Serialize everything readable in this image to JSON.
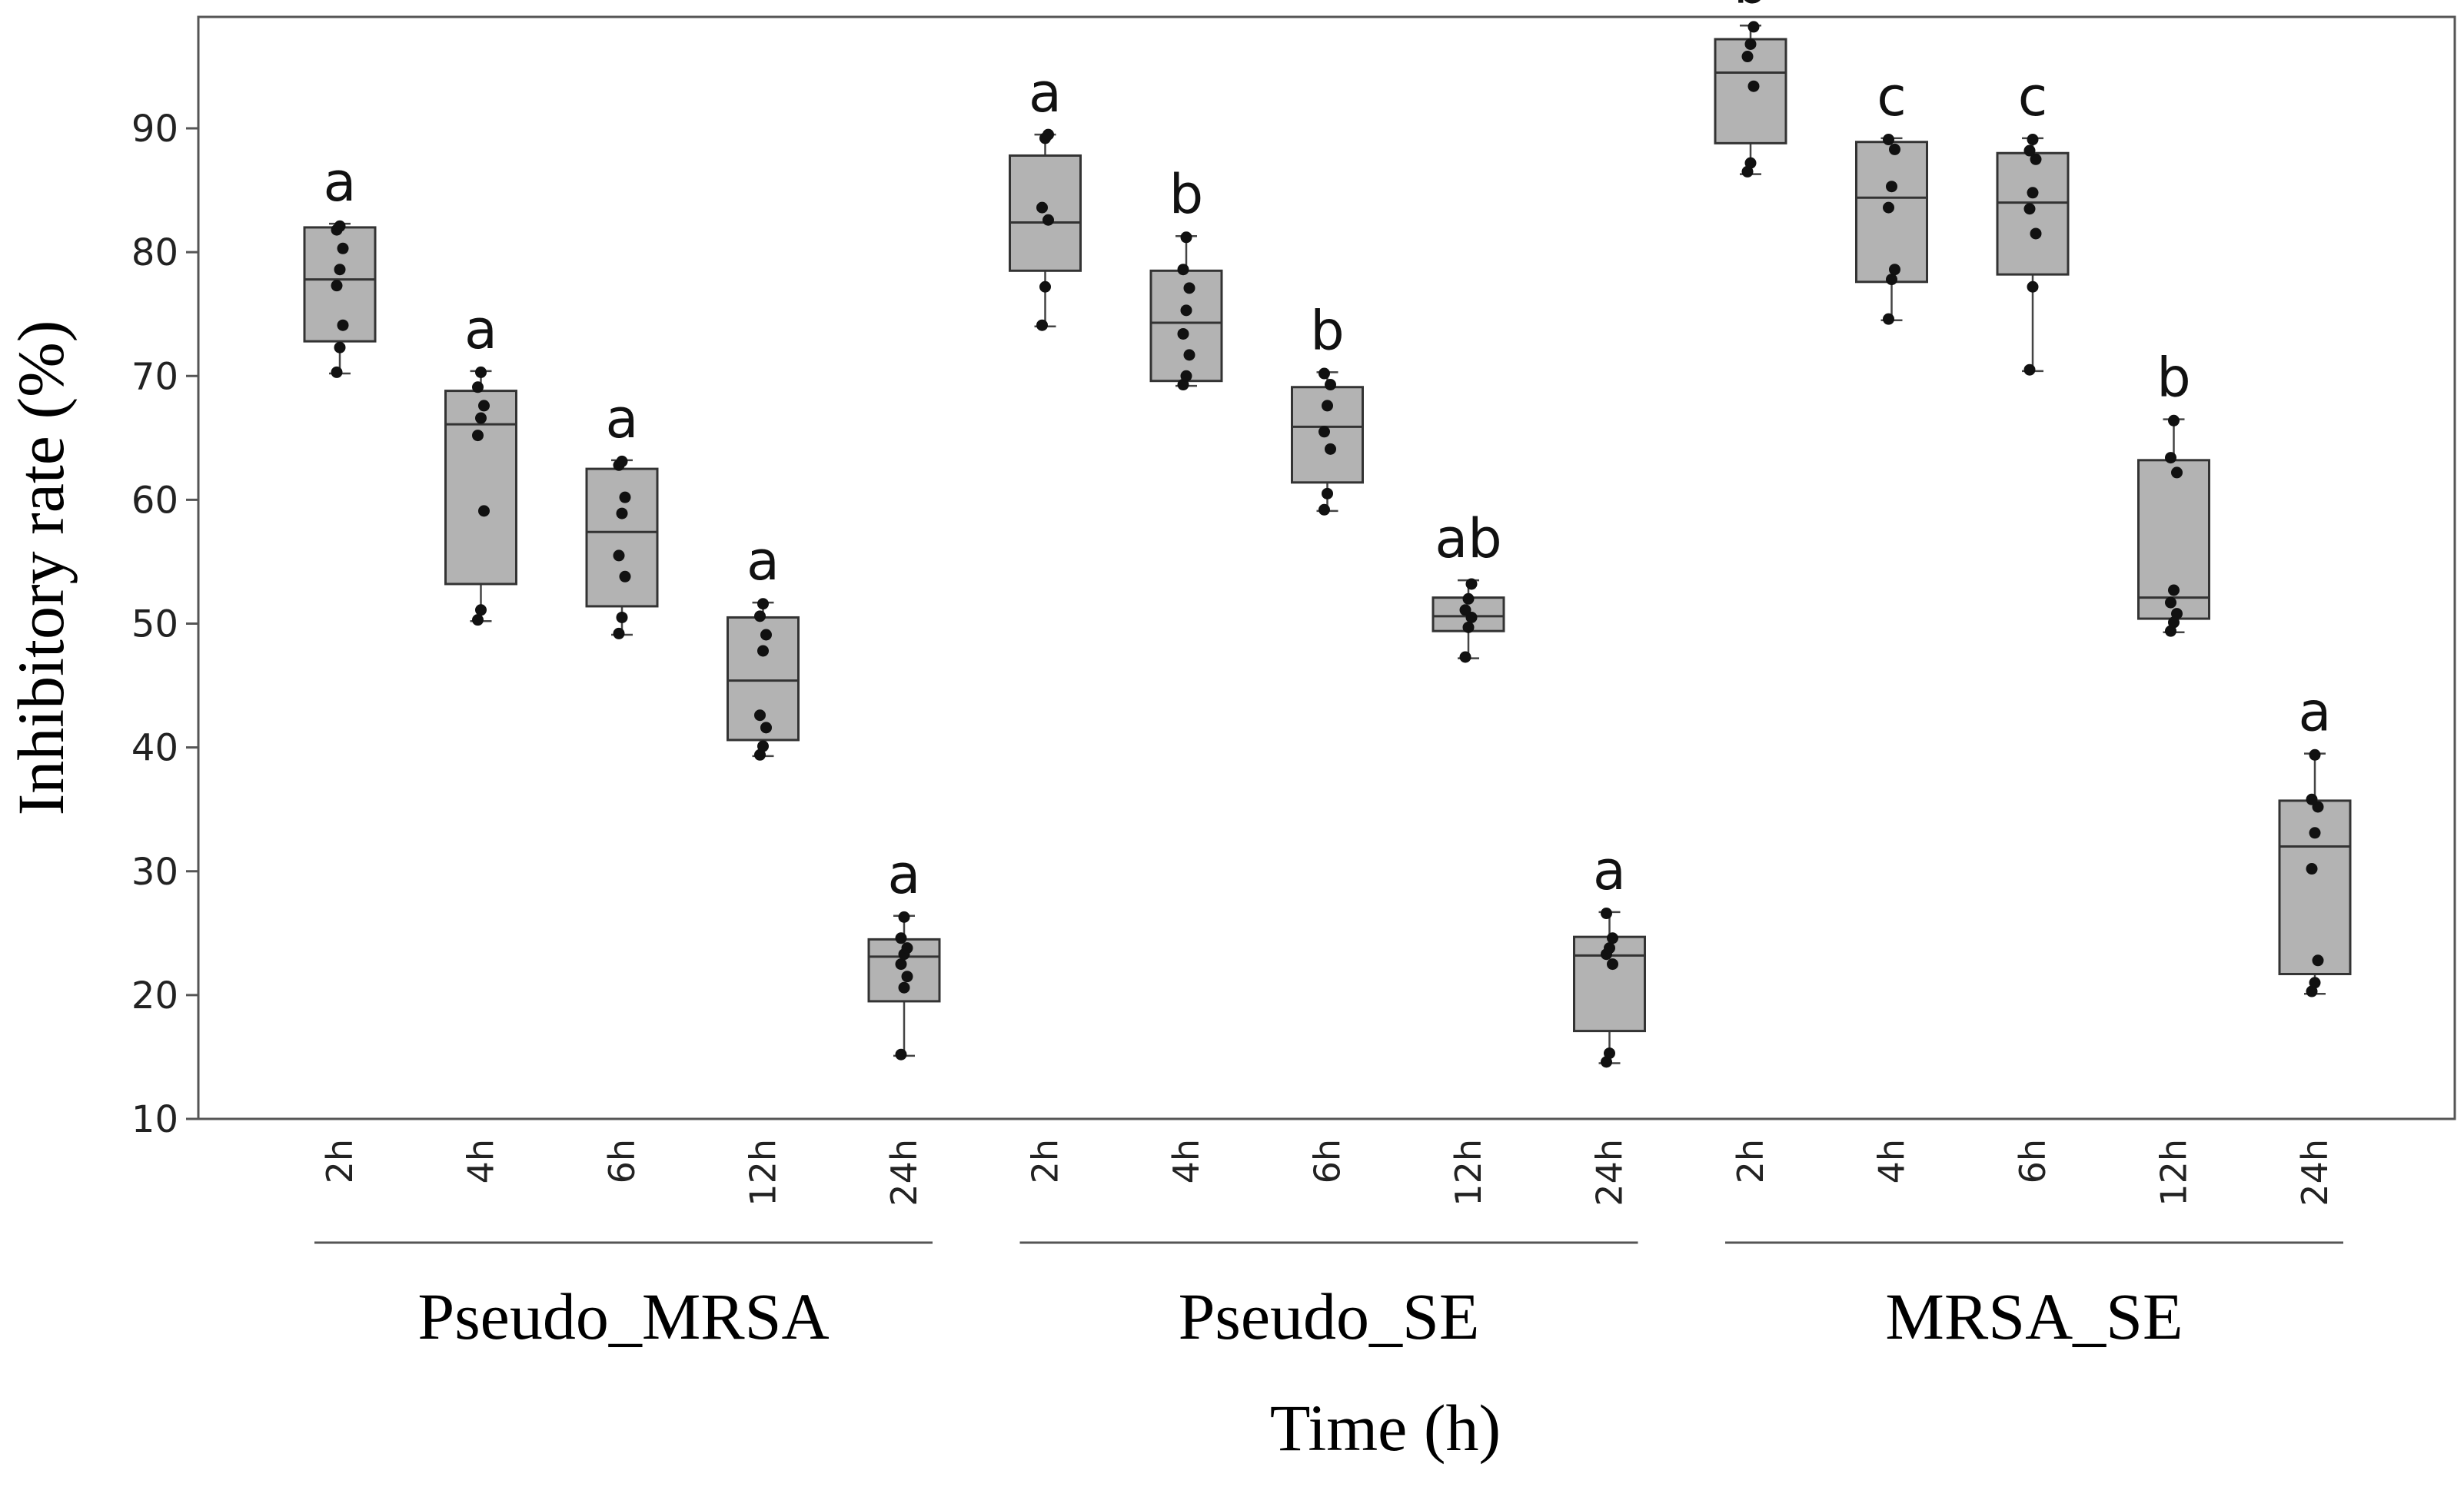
{
  "chart_data": {
    "type": "box",
    "title": "",
    "ylabel": "Inhibitory rate (%)",
    "xlabel": "Time (h)",
    "ylim": [
      10,
      99
    ],
    "yticks": [
      10,
      20,
      30,
      40,
      50,
      60,
      70,
      80,
      90
    ],
    "grid": false,
    "box_fill": "#b3b3b3",
    "groups": [
      {
        "name": "Pseudo_MRSA",
        "boxes": [
          {
            "time": "2h",
            "letter": "a",
            "q1": 72.8,
            "median": 77.8,
            "q3": 82.0,
            "whisker_low": 70.2,
            "whisker_high": 82.3,
            "points": [
              70.3,
              72.3,
              74.1,
              77.3,
              78.6,
              80.3,
              81.8,
              82.1
            ]
          },
          {
            "time": "4h",
            "letter": "a",
            "q1": 53.2,
            "median": 66.1,
            "q3": 68.8,
            "whisker_low": 50.2,
            "whisker_high": 70.4,
            "points": [
              50.3,
              51.1,
              59.1,
              65.2,
              66.6,
              67.6,
              69.1,
              70.3
            ]
          },
          {
            "time": "6h",
            "letter": "a",
            "q1": 51.4,
            "median": 57.4,
            "q3": 62.5,
            "whisker_low": 49.1,
            "whisker_high": 63.2,
            "points": [
              49.2,
              50.5,
              53.8,
              55.5,
              58.9,
              60.2,
              62.8,
              63.1
            ]
          },
          {
            "time": "12h",
            "letter": "a",
            "q1": 40.6,
            "median": 45.4,
            "q3": 50.5,
            "whisker_low": 39.3,
            "whisker_high": 51.7,
            "points": [
              39.4,
              40.1,
              41.6,
              42.6,
              47.8,
              49.1,
              50.6,
              51.6
            ]
          },
          {
            "time": "24h",
            "letter": "a",
            "q1": 19.5,
            "median": 23.1,
            "q3": 24.5,
            "whisker_low": 15.1,
            "whisker_high": 26.4,
            "points": [
              15.2,
              20.6,
              21.5,
              22.5,
              23.3,
              23.8,
              24.6,
              26.3
            ]
          }
        ]
      },
      {
        "name": "Pseudo_SE",
        "boxes": [
          {
            "time": "2h",
            "letter": "a",
            "q1": 78.5,
            "median": 82.4,
            "q3": 87.8,
            "whisker_low": 74.0,
            "whisker_high": 89.5,
            "points": [
              74.1,
              77.2,
              82.6,
              83.6,
              89.2,
              89.5
            ]
          },
          {
            "time": "4h",
            "letter": "b",
            "q1": 69.6,
            "median": 74.3,
            "q3": 78.5,
            "whisker_low": 69.2,
            "whisker_high": 81.3,
            "points": [
              69.3,
              70.0,
              71.7,
              73.4,
              75.3,
              77.1,
              78.6,
              81.2
            ]
          },
          {
            "time": "6h",
            "letter": "b",
            "q1": 61.4,
            "median": 65.9,
            "q3": 69.1,
            "whisker_low": 59.1,
            "whisker_high": 70.3,
            "points": [
              59.2,
              60.5,
              64.1,
              65.5,
              67.6,
              69.3,
              70.2
            ]
          },
          {
            "time": "12h",
            "letter": "ab",
            "q1": 49.4,
            "median": 50.6,
            "q3": 52.1,
            "whisker_low": 47.2,
            "whisker_high": 53.5,
            "points": [
              47.3,
              49.7,
              50.5,
              51.1,
              52.0,
              53.2
            ]
          },
          {
            "time": "24h",
            "letter": "a",
            "q1": 17.1,
            "median": 23.2,
            "q3": 24.7,
            "whisker_low": 14.5,
            "whisker_high": 26.7,
            "points": [
              14.6,
              15.3,
              22.5,
              23.3,
              23.8,
              24.6,
              26.6
            ]
          }
        ]
      },
      {
        "name": "MRSA_SE",
        "boxes": [
          {
            "time": "2h",
            "letter": "b",
            "q1": 88.8,
            "median": 94.5,
            "q3": 97.2,
            "whisker_low": 86.3,
            "whisker_high": 98.3,
            "points": [
              86.5,
              87.2,
              93.4,
              95.8,
              96.8,
              98.2
            ]
          },
          {
            "time": "4h",
            "letter": "c",
            "q1": 77.6,
            "median": 84.4,
            "q3": 88.9,
            "whisker_low": 74.5,
            "whisker_high": 89.2,
            "points": [
              74.6,
              77.8,
              78.6,
              83.6,
              85.3,
              88.3,
              89.1
            ]
          },
          {
            "time": "6h",
            "letter": "c",
            "q1": 78.2,
            "median": 84.0,
            "q3": 88.0,
            "whisker_low": 70.4,
            "whisker_high": 89.2,
            "points": [
              70.5,
              77.2,
              81.5,
              83.5,
              84.8,
              87.5,
              88.2,
              89.1
            ]
          },
          {
            "time": "12h",
            "letter": "b",
            "q1": 50.4,
            "median": 52.1,
            "q3": 63.2,
            "whisker_low": 49.3,
            "whisker_high": 66.5,
            "points": [
              49.4,
              50.1,
              50.8,
              51.7,
              52.7,
              62.2,
              63.4,
              66.4
            ]
          },
          {
            "time": "24h",
            "letter": "a",
            "q1": 21.7,
            "median": 32.0,
            "q3": 35.7,
            "whisker_low": 20.1,
            "whisker_high": 39.5,
            "points": [
              20.3,
              21.0,
              22.8,
              30.2,
              33.1,
              35.2,
              35.8,
              39.4
            ]
          }
        ]
      }
    ]
  }
}
